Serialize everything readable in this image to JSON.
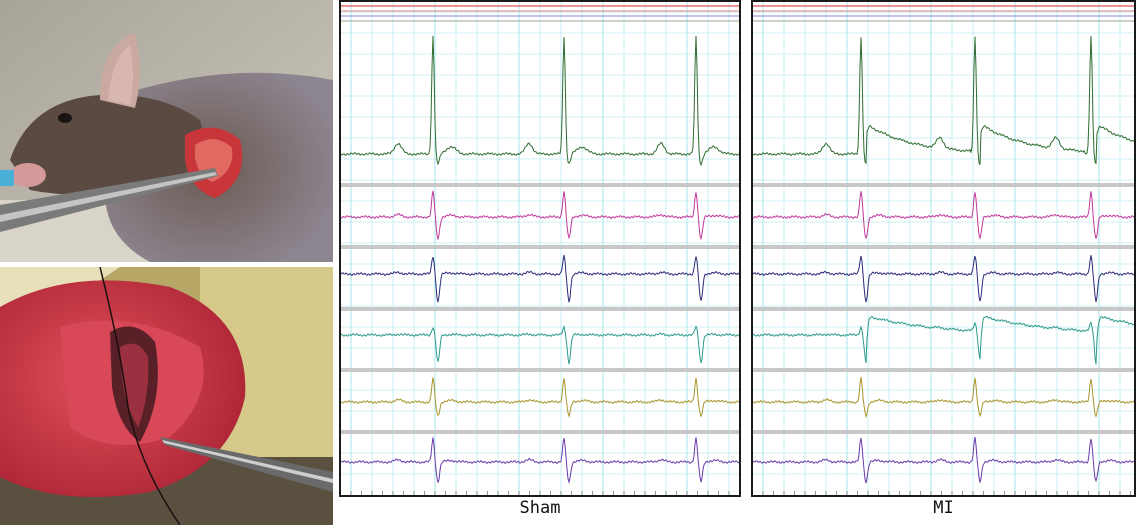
{
  "figure": {
    "captions": {
      "left": "Sham",
      "right": "MI"
    },
    "lead_colors": [
      "#2f6b2f",
      "#c0389a",
      "#2a2a78",
      "#2a9a8a",
      "#a8942a",
      "#6a3aa8"
    ],
    "grid_color": "#a6e4ec",
    "separator_color": "#c8c8c8",
    "header_colors": [
      "#e05050",
      "#e09a9a",
      "#9aa0e0",
      "#b0b0b0"
    ]
  },
  "photos": {
    "top": "mouse-anesthetized-tracheal-intubation",
    "bottom": "open-thoracotomy-coronary-ligation"
  }
}
